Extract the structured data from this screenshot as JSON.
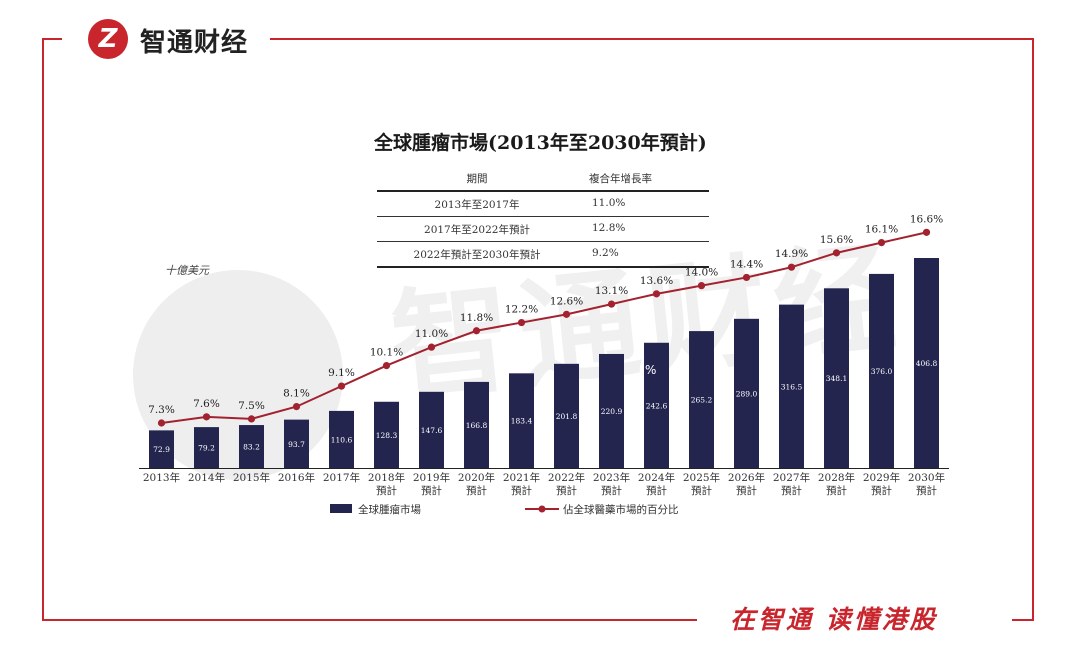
{
  "header": {
    "brand_name": "智通财经",
    "logo_letter": "Z"
  },
  "footer": {
    "slogan": "在智通 读懂港股"
  },
  "colors": {
    "brand_red": "#c8252c",
    "bar_navy": "#23254f",
    "line_maroon": "#a3222f"
  },
  "watermark": {
    "text": "智通财经"
  },
  "chart_data": {
    "type": "bar",
    "title": "全球腫瘤市場(2013年至2030年預計)",
    "unit_label": "十億美元",
    "categories": [
      [
        "2013年"
      ],
      [
        "2014年"
      ],
      [
        "2015年"
      ],
      [
        "2016年"
      ],
      [
        "2017年"
      ],
      [
        "2018年",
        "預計"
      ],
      [
        "2019年",
        "預計"
      ],
      [
        "2020年",
        "預計"
      ],
      [
        "2021年",
        "預計"
      ],
      [
        "2022年",
        "預計"
      ],
      [
        "2023年",
        "預計"
      ],
      [
        "2024年",
        "預計"
      ],
      [
        "2025年",
        "預計"
      ],
      [
        "2026年",
        "預計"
      ],
      [
        "2027年",
        "預計"
      ],
      [
        "2028年",
        "預計"
      ],
      [
        "2029年",
        "預計"
      ],
      [
        "2030年",
        "預計"
      ]
    ],
    "ylim": [
      0,
      450
    ],
    "series": [
      {
        "name": "全球腫瘤市場",
        "type": "bar",
        "values": [
          72.9,
          79.2,
          83.2,
          93.7,
          110.6,
          128.3,
          147.6,
          166.8,
          183.4,
          201.8,
          220.9,
          242.6,
          265.2,
          289.0,
          316.5,
          348.1,
          376.0,
          406.8
        ],
        "value_labels": [
          "72.9",
          "79.2",
          "83.2",
          "93.7",
          "110.6",
          "128.3",
          "147.6",
          "166.8",
          "183.4",
          "201.8",
          "220.9",
          "242.6",
          "265.2",
          "289.0",
          "316.5",
          "348.1",
          "376.0",
          "406.8"
        ]
      },
      {
        "name": "佔全球醫藥市場的百分比",
        "type": "line",
        "values": [
          7.3,
          7.6,
          7.5,
          8.1,
          9.1,
          10.1,
          11.0,
          11.8,
          12.2,
          12.6,
          13.1,
          13.6,
          14.0,
          14.4,
          14.9,
          15.6,
          16.1,
          16.6
        ],
        "value_labels": [
          "7.3%",
          "7.6%",
          "7.5%",
          "8.1%",
          "9.1%",
          "10.1%",
          "11.0%",
          "11.8%",
          "12.2%",
          "12.6%",
          "13.1%",
          "13.6%",
          "14.0%",
          "14.4%",
          "14.9%",
          "15.6%",
          "16.1%",
          "16.6%"
        ]
      }
    ],
    "line_ylim": [
      6,
      18
    ],
    "legend_position": "bottom",
    "grid": false,
    "cagr_table": {
      "headers": [
        "期間",
        "複合年增長率"
      ],
      "rows": [
        [
          "2013年至2017年",
          "11.0%"
        ],
        [
          "2017年至2022年預計",
          "12.8%"
        ],
        [
          "2022年預計至2030年預計",
          "9.2%"
        ]
      ]
    },
    "stray_mark": "%"
  }
}
